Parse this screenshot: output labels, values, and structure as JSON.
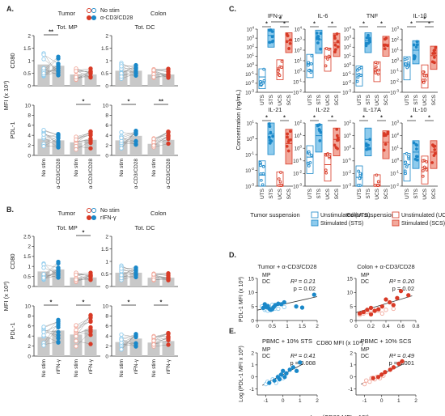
{
  "colors": {
    "tumor": "#1a88c9",
    "tumor_light": "#8ecbed",
    "colon": "#d83a26",
    "colon_light": "#f2a99c",
    "bar": "#c8c8c8"
  },
  "panels": {
    "A": "A.",
    "B": "B.",
    "C": "C.",
    "D": "D.",
    "E": "E."
  },
  "legend_A": {
    "tumor": "Tumor",
    "colon": "Colon",
    "nostim": "No stim",
    "stim": "α-CD3/CD28"
  },
  "legend_B": {
    "tumor": "Tumor",
    "colon": "Colon",
    "nostim": "No stim",
    "stim": "rIFN-γ"
  },
  "left_labels": {
    "mfi": "MFI (x 10³)",
    "cd80": "CD80",
    "pdl1": "PDL-1",
    "tot_mp": "Tot. MP",
    "tot_dc": "Tot. DC"
  },
  "c_labels": {
    "ylabel": "Concentration (ng/mL)",
    "cats": [
      "UTS",
      "STS",
      "UCS",
      "SCS"
    ],
    "tumor_susp": "Tumor suspension",
    "colon_susp": "Colon suspension",
    "unstim_t": "Unstimulated (UTS)",
    "stim_t": "Stimulated (STS)",
    "unstim_c": "Unstimulated (UCS)",
    "stim_c": "Stimulated (SCS)"
  },
  "d_e_labels": {
    "d1_title": "Tumor + α-CD3/CD28",
    "d2_title": "Colon + α-CD3/CD28",
    "d_xlabel": "CD80 MFI (x 10³)",
    "d_ylabel": "PDL-1 MFI (x 10³)",
    "e1_title": "PBMC + 10% STS",
    "e2_title": "PBMC + 10% SCS",
    "e_xlabel": "Log (CD80 MFI x 10³)",
    "e_ylabel": "Log (PDL-1 MFI x 10³)",
    "mp": "MP",
    "dc": "DC"
  },
  "chart_data": [
    {
      "type": "bar",
      "panel": "A",
      "ylabel": "MFI (x 10³)",
      "subplots": [
        {
          "col": "Tot. MP",
          "row": "CD80",
          "ylim": [
            0,
            2.0
          ],
          "yticks": [
            0,
            0.5,
            1.0,
            1.5,
            2.0
          ],
          "categories": [
            "No stim",
            "α-CD3/CD28",
            "No stim",
            "α-CD3/CD28"
          ],
          "values": [
            0.85,
            0.8,
            0.45,
            0.45
          ],
          "sig": [
            {
              "pair": [
                0,
                1
              ],
              "label": "**"
            }
          ]
        },
        {
          "col": "Tot. DC",
          "row": "CD80",
          "ylim": [
            0,
            2.0
          ],
          "yticks": [
            0,
            0.5,
            1.0,
            1.5,
            2.0
          ],
          "categories": [
            "No stim",
            "α-CD3/CD28",
            "No stim",
            "α-CD3/CD28"
          ],
          "values": [
            0.6,
            0.6,
            0.45,
            0.45
          ],
          "sig": []
        },
        {
          "col": "Tot. MP",
          "row": "PDL-1",
          "ylim": [
            0,
            10
          ],
          "yticks": [
            0,
            2,
            4,
            6,
            8,
            10
          ],
          "categories": [
            "No stim",
            "α-CD3/CD28",
            "No stim",
            "α-CD3/CD28"
          ],
          "values": [
            3.3,
            3.0,
            2.6,
            3.1
          ],
          "sig": [
            {
              "pair": [
                2,
                3
              ],
              "label": "*"
            }
          ]
        },
        {
          "col": "Tot. DC",
          "row": "PDL-1",
          "ylim": [
            0,
            10
          ],
          "yticks": [
            0,
            2,
            4,
            6,
            8,
            10
          ],
          "categories": [
            "No stim",
            "α-CD3/CD28",
            "No stim",
            "α-CD3/CD28"
          ],
          "values": [
            3.0,
            3.9,
            2.3,
            3.1
          ],
          "sig": [
            {
              "pair": [
                0,
                1
              ],
              "label": "*"
            },
            {
              "pair": [
                2,
                3
              ],
              "label": "**"
            }
          ]
        }
      ]
    },
    {
      "type": "bar",
      "panel": "B",
      "ylabel": "MFI (x 10³)",
      "subplots": [
        {
          "col": "Tot. MP",
          "row": "CD80",
          "ylim": [
            0,
            2.5
          ],
          "yticks": [
            0,
            0.5,
            1.0,
            1.5,
            2.0,
            2.5
          ],
          "categories": [
            "No stim",
            "rIFN-γ",
            "No stim",
            "rIFN-γ"
          ],
          "values": [
            0.75,
            0.85,
            0.45,
            0.45
          ],
          "sig": [
            {
              "pair": [
                2,
                3
              ],
              "label": "*"
            }
          ]
        },
        {
          "col": "Tot. DC",
          "row": "CD80",
          "ylim": [
            0,
            2.0
          ],
          "yticks": [
            0,
            0.5,
            1.0,
            1.5,
            2.0
          ],
          "categories": [
            "No stim",
            "rIFN-γ",
            "No stim",
            "rIFN-γ"
          ],
          "values": [
            0.55,
            0.55,
            0.35,
            0.35
          ],
          "sig": []
        },
        {
          "col": "Tot. MP",
          "row": "PDL-1",
          "ylim": [
            0,
            10
          ],
          "yticks": [
            0,
            2,
            4,
            6,
            8,
            10
          ],
          "categories": [
            "No stim",
            "rIFN-γ",
            "No stim",
            "rIFN-γ"
          ],
          "values": [
            3.8,
            5.1,
            4.3,
            5.3
          ],
          "sig": [
            {
              "pair": [
                0,
                1
              ],
              "label": "*"
            },
            {
              "pair": [
                2,
                3
              ],
              "label": "*"
            }
          ]
        },
        {
          "col": "Tot. DC",
          "row": "PDL-1",
          "ylim": [
            0,
            10
          ],
          "yticks": [
            0,
            2,
            4,
            6,
            8,
            10
          ],
          "categories": [
            "No stim",
            "rIFN-γ",
            "No stim",
            "rIFN-γ"
          ],
          "values": [
            2.8,
            3.5,
            2.7,
            3.0
          ],
          "sig": [
            {
              "pair": [
                0,
                1
              ],
              "label": "*"
            },
            {
              "pair": [
                2,
                3
              ],
              "label": "*"
            }
          ]
        }
      ]
    },
    {
      "type": "bar",
      "panel": "C",
      "log_y": true,
      "ylabel": "Concentration (ng/mL)",
      "categories": [
        "UTS",
        "STS",
        "UCS",
        "SCS"
      ],
      "subplots": [
        {
          "title": "IFN-γ",
          "ylim_exp": [
            -3,
            4
          ],
          "values": [
            0.05,
            2000,
            0.5,
            500
          ],
          "sig": [
            {
              "pair": [
                0,
                1
              ],
              "label": "*"
            },
            {
              "pair": [
                1,
                3
              ],
              "label": "*"
            },
            {
              "pair": [
                2,
                3
              ],
              "label": "*"
            }
          ]
        },
        {
          "title": "IL-6",
          "ylim_exp": [
            -2,
            4
          ],
          "values": [
            5,
            1000,
            20,
            500
          ],
          "sig": [
            {
              "pair": [
                0,
                1
              ],
              "label": "*"
            },
            {
              "pair": [
                2,
                3
              ],
              "label": "*"
            }
          ]
        },
        {
          "title": "TNF",
          "ylim_exp": [
            -3,
            4
          ],
          "values": [
            0.1,
            500,
            0.3,
            200
          ],
          "sig": [
            {
              "pair": [
                0,
                1
              ],
              "label": "*"
            },
            {
              "pair": [
                2,
                3
              ],
              "label": "*"
            }
          ]
        },
        {
          "title": "IL-1β",
          "ylim_exp": [
            -3,
            3
          ],
          "values": [
            0.3,
            10,
            0.05,
            3
          ],
          "sig": [
            {
              "pair": [
                0,
                1
              ],
              "label": "*"
            },
            {
              "pair": [
                1,
                3
              ],
              "label": "*"
            },
            {
              "pair": [
                2,
                3
              ],
              "label": "*"
            }
          ]
        },
        {
          "title": "IL-21",
          "ylim_exp": [
            -3,
            1
          ],
          "values": [
            0.005,
            2,
            0.001,
            0.5
          ],
          "sig": [
            {
              "pair": [
                0,
                1
              ],
              "label": "*"
            },
            {
              "pair": [
                2,
                3
              ],
              "label": "*"
            }
          ]
        },
        {
          "title": "IL-22",
          "ylim_exp": [
            -3,
            2
          ],
          "values": [
            0.2,
            10,
            0.05,
            5
          ],
          "sig": [
            {
              "pair": [
                0,
                1
              ],
              "label": "*"
            },
            {
              "pair": [
                2,
                3
              ],
              "label": "*"
            }
          ]
        },
        {
          "title": "IL-17A",
          "ylim_exp": [
            -3,
            2
          ],
          "values": [
            0.005,
            5,
            0.001,
            3
          ],
          "sig": [
            {
              "pair": [
                0,
                1
              ],
              "label": "*"
            },
            {
              "pair": [
                2,
                3
              ],
              "label": "*"
            }
          ]
        },
        {
          "title": "IL-10",
          "ylim_exp": [
            -2,
            3
          ],
          "values": [
            0.5,
            5,
            0.3,
            5
          ],
          "sig": [
            {
              "pair": [
                0,
                1
              ],
              "label": "*"
            },
            {
              "pair": [
                2,
                3
              ],
              "label": "*"
            }
          ]
        }
      ]
    },
    {
      "type": "scatter",
      "panel": "D",
      "subplots": [
        {
          "title": "Tumor + α-CD3/CD28",
          "r2": "0.21",
          "p": "0.02",
          "xlim": [
            0,
            2.0
          ],
          "xticks": [
            0,
            0.5,
            1.0,
            1.5,
            2.0
          ],
          "ylim": [
            0,
            15
          ],
          "yticks": [
            0,
            5,
            10,
            15
          ],
          "mp": [
            [
              0.2,
              4.5
            ],
            [
              0.3,
              4.8
            ],
            [
              0.35,
              5.2
            ],
            [
              0.4,
              4.2
            ],
            [
              0.45,
              3.8
            ],
            [
              0.5,
              4.0
            ],
            [
              0.6,
              5.5
            ],
            [
              0.7,
              6.0
            ],
            [
              0.8,
              5.8
            ],
            [
              0.9,
              6.5
            ],
            [
              1.3,
              5.0
            ],
            [
              1.5,
              4.6
            ],
            [
              1.9,
              9.2
            ],
            [
              0.25,
              5.8
            ],
            [
              0.55,
              4.8
            ]
          ],
          "dc": [
            [
              0.15,
              5.0
            ],
            [
              0.2,
              4.4
            ],
            [
              0.25,
              3.8
            ],
            [
              0.3,
              4.0
            ],
            [
              0.35,
              3.5
            ],
            [
              0.4,
              4.6
            ],
            [
              0.5,
              5.6
            ],
            [
              0.6,
              4.3
            ],
            [
              0.7,
              4.2
            ],
            [
              0.9,
              4.8
            ]
          ],
          "fit": [
            [
              0.0,
              3.7
            ],
            [
              2.0,
              8.5
            ]
          ]
        },
        {
          "title": "Colon + α-CD3/CD28",
          "r2": "0.20",
          "p": "0.02",
          "xlim": [
            0,
            0.8
          ],
          "xticks": [
            0,
            0.2,
            0.4,
            0.6,
            0.8
          ],
          "ylim": [
            0,
            15
          ],
          "yticks": [
            0,
            5,
            10,
            15
          ],
          "mp": [
            [
              0.05,
              2.5
            ],
            [
              0.1,
              3.0
            ],
            [
              0.15,
              3.8
            ],
            [
              0.2,
              4.5
            ],
            [
              0.25,
              3.5
            ],
            [
              0.3,
              4.0
            ],
            [
              0.35,
              5.0
            ],
            [
              0.45,
              6.5
            ],
            [
              0.5,
              5.5
            ],
            [
              0.55,
              8.0
            ],
            [
              0.6,
              10.5
            ],
            [
              0.7,
              9.0
            ],
            [
              0.2,
              2.2
            ],
            [
              0.4,
              7.5
            ]
          ],
          "dc": [
            [
              0.05,
              2.0
            ],
            [
              0.1,
              2.5
            ],
            [
              0.15,
              3.0
            ],
            [
              0.2,
              2.8
            ],
            [
              0.25,
              3.3
            ],
            [
              0.3,
              3.5
            ],
            [
              0.35,
              2.5
            ],
            [
              0.4,
              3.8
            ],
            [
              0.5,
              4.2
            ]
          ],
          "fit": [
            [
              0.0,
              2.8
            ],
            [
              0.75,
              8.8
            ]
          ]
        }
      ]
    },
    {
      "type": "scatter",
      "panel": "E",
      "subplots": [
        {
          "title": "PBMC + 10% STS",
          "r2": "0.41",
          "p": "0.008",
          "xlim": [
            -1.5,
            2
          ],
          "xticks": [
            -1,
            0,
            1,
            2
          ],
          "ylim": [
            -1.5,
            2
          ],
          "yticks": [
            -1,
            0,
            1,
            2
          ],
          "mp": [
            [
              -0.8,
              -0.5
            ],
            [
              -0.5,
              -0.3
            ],
            [
              -0.3,
              0.0
            ],
            [
              -0.1,
              0.2
            ],
            [
              0.0,
              0.5
            ],
            [
              0.2,
              0.3
            ],
            [
              0.4,
              0.6
            ],
            [
              0.6,
              0.8
            ],
            [
              0.8,
              0.5
            ],
            [
              1.0,
              1.2
            ],
            [
              -0.2,
              -0.2
            ],
            [
              0.1,
              0.0
            ]
          ],
          "dc": [
            [
              -1.0,
              -0.6
            ],
            [
              -0.9,
              -0.4
            ],
            [
              -0.6,
              -0.2
            ],
            [
              -0.4,
              -0.5
            ],
            [
              -0.2,
              0.1
            ],
            [
              0.0,
              -0.1
            ]
          ],
          "fit": [
            [
              -1.2,
              -0.7
            ],
            [
              1.2,
              1.1
            ]
          ]
        },
        {
          "title": "PBMC + 10% SCS",
          "r2": "0.49",
          "p": "0.001",
          "xlim": [
            -1.5,
            2
          ],
          "xticks": [
            -1,
            0,
            1,
            2
          ],
          "ylim": [
            -1.5,
            2
          ],
          "yticks": [
            -1,
            0,
            1,
            2
          ],
          "mp": [
            [
              -0.5,
              -0.1
            ],
            [
              -0.2,
              0.0
            ],
            [
              0.0,
              0.2
            ],
            [
              0.2,
              0.4
            ],
            [
              0.5,
              0.6
            ],
            [
              0.7,
              0.8
            ],
            [
              1.0,
              1.1
            ],
            [
              1.2,
              1.3
            ]
          ],
          "dc": [
            [
              -1.0,
              -0.6
            ],
            [
              -0.9,
              -0.3
            ],
            [
              -0.7,
              -0.4
            ],
            [
              -0.6,
              -0.1
            ],
            [
              -0.4,
              -0.2
            ],
            [
              -0.3,
              0.0
            ],
            [
              -0.1,
              -0.1
            ],
            [
              0.1,
              0.1
            ]
          ],
          "fit": [
            [
              -1.2,
              -0.6
            ],
            [
              1.3,
              1.1
            ]
          ]
        }
      ]
    }
  ]
}
